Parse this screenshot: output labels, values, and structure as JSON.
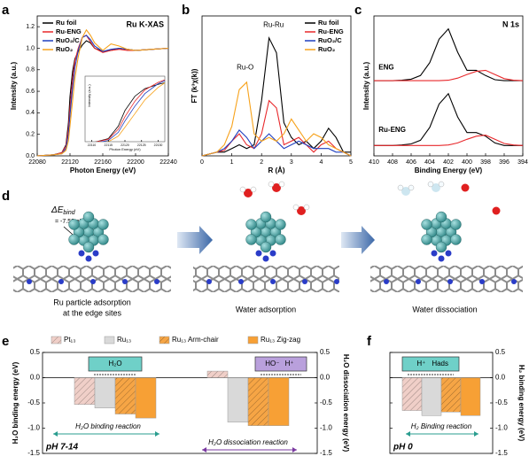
{
  "chart_data": [
    {
      "type": "line",
      "panel_label": "a",
      "title": "Ru K-XAS",
      "xlabel": "Photon Energy (eV)",
      "ylabel": "Intensity (a.u.)",
      "x": [
        22080,
        22100,
        22110,
        22115,
        22118,
        22120,
        22123,
        22126,
        22130,
        22135,
        22140,
        22145,
        22150,
        22160,
        22170,
        22180,
        22190,
        22200,
        22220,
        22240
      ],
      "series": [
        {
          "name": "Ru foil",
          "color": "#000000",
          "values": [
            0,
            0.01,
            0.03,
            0.1,
            0.3,
            0.55,
            0.78,
            0.9,
            0.97,
            1.03,
            1.07,
            1.05,
            1.0,
            0.97,
            0.98,
            1.0,
            0.99,
            0.98,
            0.99,
            1.0
          ]
        },
        {
          "name": "Ru-ENG",
          "color": "#e8282b",
          "values": [
            0,
            0.01,
            0.03,
            0.09,
            0.25,
            0.45,
            0.7,
            0.88,
            1.0,
            1.1,
            1.12,
            1.06,
            1.0,
            0.96,
            0.98,
            0.99,
            0.98,
            0.98,
            0.99,
            1.0
          ]
        },
        {
          "name": "RuO₂/C",
          "color": "#1f3fbf",
          "values": [
            0,
            0.01,
            0.02,
            0.07,
            0.2,
            0.38,
            0.62,
            0.82,
            0.98,
            1.1,
            1.12,
            1.08,
            1.02,
            0.97,
            0.99,
            1.0,
            0.99,
            0.98,
            0.99,
            1.0
          ]
        },
        {
          "name": "RuO₂",
          "color": "#f7a21b",
          "values": [
            0,
            0.01,
            0.02,
            0.05,
            0.14,
            0.28,
            0.5,
            0.72,
            0.92,
            1.1,
            1.17,
            1.12,
            1.05,
            0.98,
            1.04,
            1.02,
            0.99,
            0.98,
            0.99,
            1.0
          ]
        }
      ],
      "xlim": [
        22080,
        22240
      ],
      "xticks": [
        22080,
        22120,
        22160,
        22200,
        22240
      ],
      "ylim": [
        0,
        1.3
      ],
      "yticks": [
        {
          "value": 0,
          "label": "0.0"
        },
        0.2,
        0.4,
        0.6,
        0.8,
        {
          "value": 1,
          "label": "1.0"
        },
        1.2
      ],
      "inset": {
        "xlabel": "Photon Energy (eV)",
        "ylabel": "Intensity (a.u.)",
        "xlim": [
          22108,
          22132
        ],
        "ylim": [
          0.05,
          1.1
        ],
        "xticks": [
          22110,
          22115,
          22120,
          22125,
          22130
        ]
      }
    },
    {
      "type": "line",
      "panel_label": "b",
      "xlabel": "R (Å)",
      "ylabel": "FT (k³χ(k))",
      "x": [
        0,
        0.25,
        0.5,
        0.75,
        1,
        1.25,
        1.5,
        1.75,
        2,
        2.25,
        2.5,
        2.75,
        3,
        3.25,
        3.5,
        3.75,
        4,
        4.25,
        4.5,
        4.75,
        5
      ],
      "series": [
        {
          "name": "Ru foil",
          "color": "#000000",
          "values": [
            0,
            0.05,
            0.1,
            0.1,
            0.2,
            0.3,
            0.2,
            0.3,
            1.5,
            3.2,
            2.8,
            0.9,
            0.5,
            0.3,
            0.4,
            0.2,
            0.4,
            0.75,
            0.5,
            0.1,
            0.1
          ]
        },
        {
          "name": "Ru-ENG",
          "color": "#e8282b",
          "values": [
            0,
            0.05,
            0.1,
            0.15,
            0.4,
            0.6,
            0.3,
            0.2,
            0.6,
            1.5,
            1.3,
            0.3,
            0.4,
            0.5,
            0.3,
            0.1,
            0.3,
            0.4,
            0.2,
            0.1,
            0
          ]
        },
        {
          "name": "RuO₂/C",
          "color": "#1f3fbf",
          "values": [
            0,
            0.05,
            0.1,
            0.2,
            0.4,
            0.7,
            0.5,
            0.2,
            0.4,
            0.6,
            0.4,
            0.2,
            0.3,
            0.4,
            0.3,
            0.2,
            0.2,
            0.2,
            0.1,
            0.1,
            0
          ]
        },
        {
          "name": "RuO₂",
          "color": "#f7a21b",
          "values": [
            0,
            0.05,
            0.1,
            0.3,
            0.8,
            1.8,
            2.0,
            0.6,
            0.4,
            0.5,
            0.4,
            0.6,
            1.0,
            0.7,
            0.4,
            0.6,
            0.5,
            0.3,
            0.2,
            0.1,
            0
          ]
        }
      ],
      "xlim": [
        0,
        5
      ],
      "xticks": [
        0,
        1,
        2,
        3,
        4,
        5
      ],
      "ylim": [
        0,
        3.8
      ],
      "annotations": [
        "Ru-Ru",
        "Ru-O"
      ]
    },
    {
      "type": "line",
      "panel_label": "c",
      "title": "N 1s",
      "xlabel": "Binding Energy (eV)",
      "ylabel": "Intensity (a.u.)",
      "x": [
        410,
        409,
        408,
        407,
        406,
        405,
        404,
        403,
        402,
        401,
        400,
        399,
        398,
        397,
        396,
        395,
        394
      ],
      "series": [
        {
          "color": "#000000",
          "values": [
            1.75,
            1.75,
            1.75,
            1.76,
            1.78,
            1.85,
            2.1,
            2.55,
            2.75,
            2.3,
            1.95,
            1.95,
            1.85,
            1.77,
            1.75,
            1.75,
            1.75
          ]
        },
        {
          "color": "#e8282b",
          "values": [
            1.75,
            1.75,
            1.75,
            1.75,
            1.75,
            1.75,
            1.75,
            1.75,
            1.76,
            1.8,
            1.87,
            1.93,
            1.95,
            1.87,
            1.79,
            1.76,
            1.75
          ]
        },
        {
          "color": "#000000",
          "values": [
            0.5,
            0.5,
            0.5,
            0.51,
            0.53,
            0.6,
            0.85,
            1.3,
            1.5,
            1.05,
            0.75,
            0.75,
            0.68,
            0.55,
            0.5,
            0.5,
            0.5
          ]
        },
        {
          "color": "#e8282b",
          "values": [
            0.5,
            0.5,
            0.5,
            0.5,
            0.5,
            0.5,
            0.5,
            0.5,
            0.51,
            0.55,
            0.62,
            0.68,
            0.7,
            0.62,
            0.54,
            0.51,
            0.5
          ]
        }
      ],
      "xlim": [
        410,
        394
      ],
      "xticks": [
        410,
        408,
        406,
        404,
        402,
        400,
        398,
        396,
        394
      ],
      "ylim": [
        0.3,
        3.0
      ],
      "annotations": [
        "ENG",
        "Ru-ENG"
      ]
    },
    {
      "type": "bar",
      "panel_label": "e",
      "ylabel": "H₂O binding energy (eV)",
      "y2label": "H₂O dissociation energy (eV)",
      "categories": [
        null,
        null
      ],
      "series": [
        {
          "name": "Pt₁₃",
          "color": "#f0cfc8",
          "hatch": true,
          "values": [
            -0.53,
            0.13
          ]
        },
        {
          "name": "Ru₁₃",
          "color": "#d9d9d9",
          "hatch": false,
          "values": [
            -0.6,
            -0.88
          ]
        },
        {
          "name": "Ru₁₃ Arm-chair",
          "color": "#f6a545",
          "hatch": true,
          "values": [
            -0.72,
            -0.95
          ]
        },
        {
          "name": "Ru₁₃ Zig-zag",
          "color": "#f7a035",
          "hatch": false,
          "values": [
            -0.8,
            -0.95
          ]
        }
      ],
      "ylim": [
        -1.5,
        0.5
      ],
      "yticks": [
        0.5,
        {
          "value": 0,
          "label": "0.0"
        },
        -0.5,
        {
          "value": -1,
          "label": "-1.0"
        },
        -1.5
      ],
      "y2lim": [
        -1.5,
        0.5
      ],
      "y2ticks": [
        0.5,
        {
          "value": 0,
          "label": "0.0"
        },
        -0.5,
        {
          "value": -1,
          "label": "-1.0"
        },
        -1.5
      ],
      "reaction_boxes": [
        [
          "H₂O"
        ],
        [
          "HO⁻",
          "H⁺"
        ]
      ],
      "annotations": [
        "H₂O binding reaction",
        "H₂O dissociation reaction",
        "pH 7-14"
      ]
    },
    {
      "type": "bar",
      "panel_label": "f",
      "y2label": "H₂ binding energy (eV)",
      "categories": [
        null
      ],
      "series": [
        {
          "color": "#f0cfc8",
          "hatch": true,
          "values": [
            -0.65
          ]
        },
        {
          "color": "#d9d9d9",
          "hatch": false,
          "values": [
            -0.75
          ]
        },
        {
          "color": "#f6a545",
          "hatch": true,
          "values": [
            -0.68
          ]
        },
        {
          "color": "#f7a035",
          "hatch": false,
          "values": [
            -0.75
          ]
        }
      ],
      "y2lim": [
        -1.5,
        0.5
      ],
      "y2ticks": [
        0.5,
        {
          "value": 0,
          "label": "0.0"
        },
        -0.5,
        {
          "value": -1,
          "label": "-1.0"
        },
        -1.5
      ],
      "reaction_boxes": [
        [
          "H⁺",
          "Hads"
        ]
      ],
      "annotations": [
        "H₂ Binding reaction",
        "pH 0"
      ]
    }
  ],
  "diagram": {
    "panel_label": "d",
    "energy_label": "ΔE",
    "energy_sub": "bind",
    "energy_value": "= -7.52 eV",
    "captions": [
      [
        "Ru particle adsorption",
        "at the edge sites"
      ],
      [
        "Water adsorption"
      ],
      [
        "Water dissociation"
      ]
    ]
  }
}
